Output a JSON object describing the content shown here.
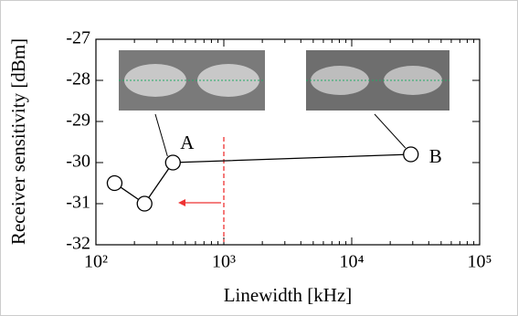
{
  "chart_data": {
    "type": "line",
    "x_label": "Linewidth [kHz]",
    "y_label": "Receiver sensitivity [dBm]",
    "x_log": true,
    "xlim": [
      100,
      100000
    ],
    "xticks": [
      {
        "value": 100,
        "label": "10²"
      },
      {
        "value": 1000,
        "label": "10³"
      },
      {
        "value": 10000,
        "label": "10⁴"
      },
      {
        "value": 100000,
        "label": "10⁵"
      }
    ],
    "ylim": [
      -32,
      -27
    ],
    "yticks": [
      -32,
      -31,
      -30,
      -29,
      -28,
      -27
    ],
    "series": [
      {
        "color": "#000000",
        "x": [
          140,
          240,
          400,
          29000
        ],
        "values": [
          -30.5,
          -31,
          -30,
          -29.8
        ]
      }
    ],
    "annotations": [
      {
        "text": "A",
        "x": 400,
        "y": -30
      },
      {
        "text": "B",
        "x": 29000,
        "y": -29.8
      }
    ],
    "threshold_x": 1000
  }
}
